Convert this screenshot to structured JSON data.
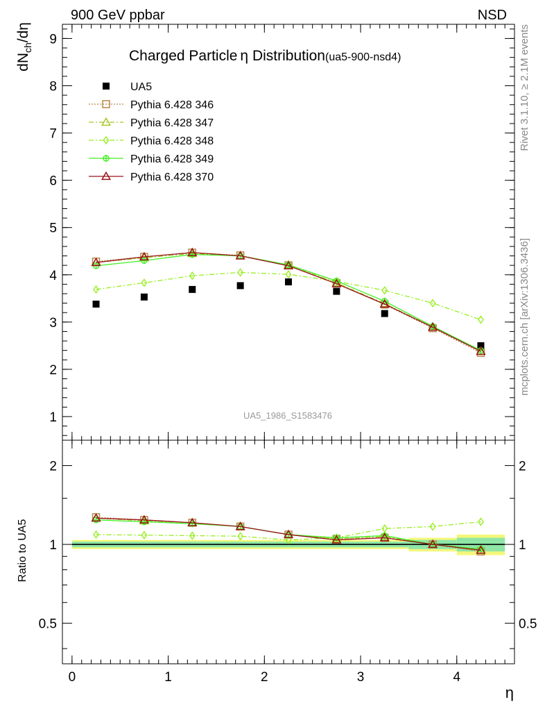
{
  "header": {
    "left_label": "900 GeV ppbar",
    "right_label": "NSD",
    "side_rivet": "Rivet 3.1.10, ≥ 2.1M events",
    "side_mcplots": "mcplots.cern.ch [arXiv:1306.3436]",
    "watermark": "UA5_1986_S1583476"
  },
  "chart_data": [
    {
      "type": "scatter",
      "title_main": "Charged Particle",
      "title_eta": "η",
      "title_rest": " Distribution",
      "title_tag": "(ua5-900-nsd4)",
      "ylabel_main": "dN",
      "ylabel_sub": "ch",
      "ylabel_rest": "/dη",
      "xlabel": "η",
      "xlim": [
        -0.1,
        4.6
      ],
      "ylim": [
        0.5,
        9.3
      ],
      "xticks": [
        0,
        1,
        2,
        3,
        4
      ],
      "yticks": [
        1,
        2,
        3,
        4,
        5,
        6,
        7,
        8,
        9
      ],
      "legend_position": "top-left",
      "x": [
        0.25,
        0.75,
        1.25,
        1.75,
        2.25,
        2.75,
        3.25,
        3.75,
        4.25
      ],
      "series": [
        {
          "name": "UA5",
          "marker": "square-filled",
          "line": "none",
          "color": "#000000",
          "values": [
            3.38,
            3.53,
            3.69,
            3.77,
            3.85,
            3.65,
            3.18,
            null,
            2.5
          ]
        },
        {
          "name": "Pythia 6.428 346",
          "marker": "square-open",
          "line": "dotted",
          "color": "#b8864b",
          "values": [
            4.28,
            4.38,
            4.47,
            4.41,
            4.2,
            3.82,
            3.37,
            2.87,
            2.35
          ]
        },
        {
          "name": "Pythia 6.428 347",
          "marker": "triangle-open",
          "line": "dashdot",
          "color": "#a4c823",
          "values": [
            4.26,
            4.36,
            4.45,
            4.4,
            4.21,
            3.83,
            3.39,
            2.9,
            2.38
          ]
        },
        {
          "name": "Pythia 6.428 348",
          "marker": "diamond-open",
          "line": "dashdot",
          "color": "#99ee22",
          "values": [
            3.69,
            3.83,
            3.98,
            4.05,
            4.01,
            3.86,
            3.67,
            3.4,
            3.05
          ]
        },
        {
          "name": "Pythia 6.428 349",
          "marker": "circle-cross",
          "line": "solid",
          "color": "#44ee22",
          "values": [
            4.19,
            4.3,
            4.43,
            4.4,
            4.21,
            3.87,
            3.44,
            2.91,
            2.4
          ]
        },
        {
          "name": "Pythia 6.428 370",
          "marker": "triangle-open",
          "line": "solid",
          "color": "#99111c",
          "values": [
            4.26,
            4.38,
            4.47,
            4.4,
            4.19,
            3.81,
            3.38,
            2.89,
            2.38
          ]
        }
      ]
    },
    {
      "type": "line",
      "ylabel": "Ratio to UA5",
      "xlabel": "η",
      "xlim": [
        -0.1,
        4.6
      ],
      "ylim": [
        0.35,
        2.5
      ],
      "xticks": [
        0,
        1,
        2,
        3,
        4
      ],
      "yticks": [
        0.5,
        1,
        2
      ],
      "ytick_labels": [
        "0.5",
        "1",
        "2"
      ],
      "log_y": true,
      "x": [
        0.25,
        0.75,
        1.25,
        1.75,
        2.25,
        2.75,
        3.25,
        3.75,
        4.25
      ],
      "reference_value": 1,
      "uncertainty_bands": [
        {
          "x_from": 0.0,
          "x_to": 3.5,
          "inner": [
            0.975,
            1.025
          ],
          "outer": [
            0.96,
            1.04
          ]
        },
        {
          "x_from": 3.5,
          "x_to": 4.0,
          "inner": [
            0.96,
            1.04
          ],
          "outer": [
            0.94,
            1.06
          ]
        },
        {
          "x_from": 4.0,
          "x_to": 4.5,
          "inner": [
            0.94,
            1.06
          ],
          "outer": [
            0.91,
            1.09
          ]
        }
      ],
      "series": [
        {
          "name": "Pythia 6.428 346",
          "values": [
            1.27,
            1.24,
            1.21,
            1.17,
            1.09,
            1.05,
            1.06,
            1.0,
            0.94
          ]
        },
        {
          "name": "Pythia 6.428 347",
          "values": [
            1.26,
            1.23,
            1.21,
            1.17,
            1.09,
            1.05,
            1.07,
            1.0,
            0.95
          ]
        },
        {
          "name": "Pythia 6.428 348",
          "values": [
            1.09,
            1.085,
            1.08,
            1.075,
            1.04,
            1.06,
            1.15,
            1.17,
            1.22
          ]
        },
        {
          "name": "Pythia 6.428 349",
          "values": [
            1.24,
            1.22,
            1.2,
            1.17,
            1.09,
            1.06,
            1.08,
            1.0,
            0.96
          ]
        },
        {
          "name": "Pythia 6.428 370",
          "values": [
            1.26,
            1.24,
            1.21,
            1.17,
            1.09,
            1.04,
            1.06,
            1.0,
            0.95
          ]
        }
      ]
    }
  ]
}
